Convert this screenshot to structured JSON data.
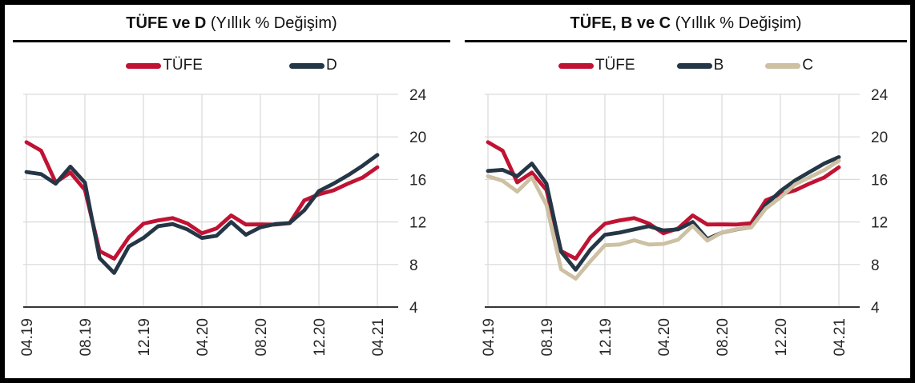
{
  "colors": {
    "tufe_red": "#C01334",
    "navy": "#253646",
    "tan": "#CDC0A3",
    "grid": "#D9D9D9",
    "axis": "#1A1A1A",
    "tick_text": "#262626"
  },
  "panels": [
    {
      "title_bold": "TÜFE ve D",
      "title_rest": " (Yıllık % Değişim)",
      "legend": [
        {
          "label": "TÜFE",
          "color": "#C01334"
        },
        {
          "label": "D",
          "color": "#253646"
        }
      ]
    },
    {
      "title_bold": "TÜFE, B ve C",
      "title_rest": " (Yıllık % Değişim)",
      "legend": [
        {
          "label": "TÜFE",
          "color": "#C01334"
        },
        {
          "label": "B",
          "color": "#253646"
        },
        {
          "label": "C",
          "color": "#CDC0A3"
        }
      ]
    }
  ],
  "chart_data": [
    {
      "type": "line",
      "title": "TÜFE ve D (Yıllık % Değişim)",
      "x": [
        "04.19",
        "05.19",
        "06.19",
        "07.19",
        "08.19",
        "09.19",
        "10.19",
        "11.19",
        "12.19",
        "01.20",
        "02.20",
        "03.20",
        "04.20",
        "05.20",
        "06.20",
        "07.20",
        "08.20",
        "09.20",
        "10.20",
        "11.20",
        "12.20",
        "01.21",
        "02.21",
        "03.21",
        "04.21"
      ],
      "x_tick_labels": [
        "04.19",
        "08.19",
        "12.19",
        "04.20",
        "08.20",
        "12.20",
        "04.21"
      ],
      "ylim": [
        4,
        24
      ],
      "yticks": [
        24,
        20,
        16,
        12,
        8,
        4
      ],
      "grid": true,
      "legend_position": "top",
      "y_axis_side": "right",
      "series": [
        {
          "name": "TÜFE",
          "color": "#C01334",
          "values": [
            19.5,
            18.71,
            15.72,
            16.65,
            15.01,
            9.26,
            8.55,
            10.56,
            11.84,
            12.15,
            12.37,
            11.86,
            10.94,
            11.39,
            12.62,
            11.76,
            11.77,
            11.75,
            11.89,
            14.03,
            14.6,
            14.97,
            15.61,
            16.19,
            17.14
          ]
        },
        {
          "name": "D",
          "color": "#253646",
          "values": [
            16.7,
            16.5,
            15.6,
            17.2,
            15.7,
            8.6,
            7.2,
            9.7,
            10.5,
            11.6,
            11.8,
            11.3,
            10.5,
            10.7,
            12.0,
            10.8,
            11.5,
            11.8,
            11.9,
            13.1,
            14.9,
            15.6,
            16.4,
            17.3,
            18.3
          ]
        }
      ]
    },
    {
      "type": "line",
      "title": "TÜFE, B ve C (Yıllık % Değişim)",
      "x": [
        "04.19",
        "05.19",
        "06.19",
        "07.19",
        "08.19",
        "09.19",
        "10.19",
        "11.19",
        "12.19",
        "01.20",
        "02.20",
        "03.20",
        "04.20",
        "05.20",
        "06.20",
        "07.20",
        "08.20",
        "09.20",
        "10.20",
        "11.20",
        "12.20",
        "01.21",
        "02.21",
        "03.21",
        "04.21"
      ],
      "x_tick_labels": [
        "04.19",
        "08.19",
        "12.19",
        "04.20",
        "08.20",
        "12.20",
        "04.21"
      ],
      "ylim": [
        4,
        24
      ],
      "yticks": [
        24,
        20,
        16,
        12,
        8,
        4
      ],
      "grid": true,
      "legend_position": "top",
      "y_axis_side": "right",
      "series": [
        {
          "name": "TÜFE",
          "color": "#C01334",
          "values": [
            19.5,
            18.71,
            15.72,
            16.65,
            15.01,
            9.26,
            8.55,
            10.56,
            11.84,
            12.15,
            12.37,
            11.86,
            10.94,
            11.39,
            12.62,
            11.76,
            11.77,
            11.75,
            11.89,
            14.03,
            14.6,
            14.97,
            15.61,
            16.19,
            17.14
          ]
        },
        {
          "name": "B",
          "color": "#253646",
          "values": [
            16.8,
            16.9,
            16.3,
            17.5,
            15.6,
            9.2,
            7.5,
            9.4,
            10.8,
            11.0,
            11.3,
            11.6,
            11.2,
            11.3,
            12.0,
            10.4,
            11.0,
            11.3,
            11.5,
            13.6,
            14.9,
            15.9,
            16.7,
            17.5,
            18.1
          ]
        },
        {
          "name": "C",
          "color": "#CDC0A3",
          "values": [
            16.3,
            15.87,
            14.86,
            16.2,
            13.6,
            7.54,
            6.67,
            8.3,
            9.81,
            9.88,
            10.27,
            9.88,
            9.93,
            10.33,
            11.64,
            10.25,
            11.01,
            11.32,
            11.48,
            13.26,
            14.31,
            15.53,
            16.21,
            16.88,
            17.77
          ]
        }
      ]
    }
  ]
}
